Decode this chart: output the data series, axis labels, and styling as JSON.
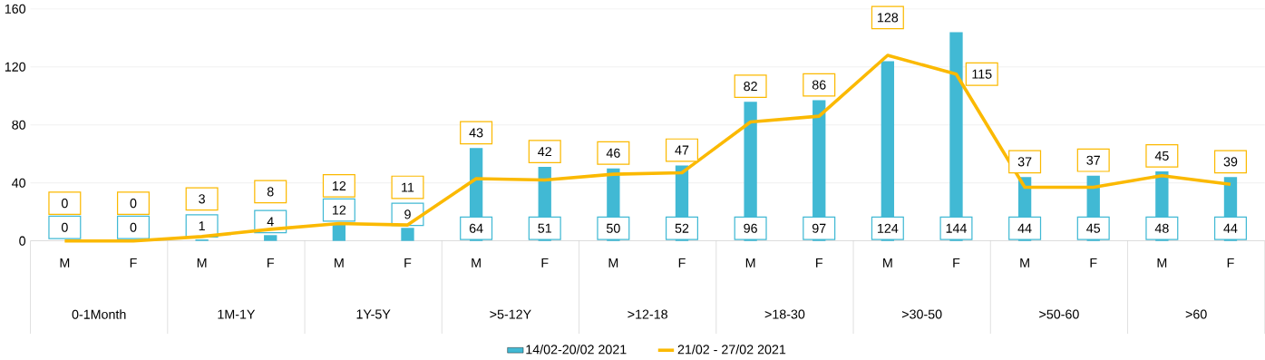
{
  "chart_data": {
    "type": "bar",
    "categories": [
      "M",
      "F",
      "M",
      "F",
      "M",
      "F",
      "M",
      "F",
      "M",
      "F",
      "M",
      "F",
      "M",
      "F",
      "M",
      "F",
      "M",
      "F"
    ],
    "series": [
      {
        "name": "14/02-20/02 2021",
        "color": "#41b9d4",
        "values": [
          0,
          0,
          1,
          4,
          12,
          9,
          64,
          51,
          50,
          52,
          96,
          97,
          124,
          144,
          44,
          45,
          48,
          44
        ]
      },
      {
        "name": "21/02 - 27/02 2021",
        "type": "line",
        "color": "#fbb900",
        "values": [
          0,
          0,
          3,
          8,
          12,
          11,
          43,
          42,
          46,
          47,
          82,
          86,
          128,
          115,
          37,
          37,
          45,
          39
        ]
      }
    ],
    "ylim": [
      0,
      160
    ],
    "yticks": [
      0,
      40,
      80,
      120,
      160
    ],
    "grid": "y",
    "legend": "bottom",
    "data_labels": true,
    "marker": "none",
    "annotations": [
      "0-1Month",
      "1M-1Y",
      "1Y-5Y",
      ">5-12Y",
      ">12-18",
      ">18-30",
      ">30-50",
      ">50-60",
      ">60"
    ]
  }
}
